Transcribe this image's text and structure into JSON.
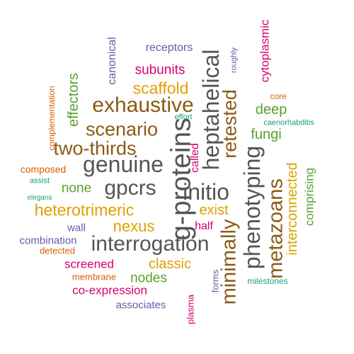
{
  "words": [
    {
      "text": "g-proteins",
      "color": "gray"
    },
    {
      "text": "interrogation",
      "color": "gray"
    },
    {
      "text": "genuine",
      "color": "gray"
    },
    {
      "text": "initio",
      "color": "gray"
    },
    {
      "text": "heptahelical",
      "color": "gray"
    },
    {
      "text": "phenotyping",
      "color": "gray"
    },
    {
      "text": "gpcrs",
      "color": "gray"
    },
    {
      "text": "exhaustive",
      "color": "brown"
    },
    {
      "text": "scenario",
      "color": "brown"
    },
    {
      "text": "two-thirds",
      "color": "brown"
    },
    {
      "text": "retested",
      "color": "brown"
    },
    {
      "text": "minimally",
      "color": "brown"
    },
    {
      "text": "metazoans",
      "color": "brown"
    },
    {
      "text": "scaffold",
      "color": "orange"
    },
    {
      "text": "heterotrimeric",
      "color": "orange"
    },
    {
      "text": "nexus",
      "color": "orange"
    },
    {
      "text": "exist",
      "color": "orange"
    },
    {
      "text": "classic",
      "color": "orange"
    },
    {
      "text": "interconnected",
      "color": "orange"
    },
    {
      "text": "subunits",
      "color": "magenta"
    },
    {
      "text": "cytoplasmic",
      "color": "magenta"
    },
    {
      "text": "called",
      "color": "magenta"
    },
    {
      "text": "half",
      "color": "magenta"
    },
    {
      "text": "screened",
      "color": "magenta"
    },
    {
      "text": "co-expression",
      "color": "magenta"
    },
    {
      "text": "plasma",
      "color": "magenta"
    },
    {
      "text": "effectors",
      "color": "green"
    },
    {
      "text": "deep",
      "color": "green"
    },
    {
      "text": "fungi",
      "color": "green"
    },
    {
      "text": "none",
      "color": "green"
    },
    {
      "text": "comprising",
      "color": "green"
    },
    {
      "text": "nodes",
      "color": "green"
    },
    {
      "text": "receptors",
      "color": "purple"
    },
    {
      "text": "canonical",
      "color": "purple"
    },
    {
      "text": "wall",
      "color": "purple"
    },
    {
      "text": "combination",
      "color": "purple"
    },
    {
      "text": "associates",
      "color": "purple"
    },
    {
      "text": "forms",
      "color": "purple"
    },
    {
      "text": "roughly",
      "color": "purple"
    },
    {
      "text": "complementation",
      "color": "red"
    },
    {
      "text": "composed",
      "color": "red"
    },
    {
      "text": "detected",
      "color": "red"
    },
    {
      "text": "membrane",
      "color": "red"
    },
    {
      "text": "core",
      "color": "red"
    },
    {
      "text": "effort",
      "color": "teal"
    },
    {
      "text": "caenorhabditis",
      "color": "teal"
    },
    {
      "text": "assist",
      "color": "teal"
    },
    {
      "text": "elegans",
      "color": "teal"
    },
    {
      "text": "milestones",
      "color": "teal"
    }
  ]
}
